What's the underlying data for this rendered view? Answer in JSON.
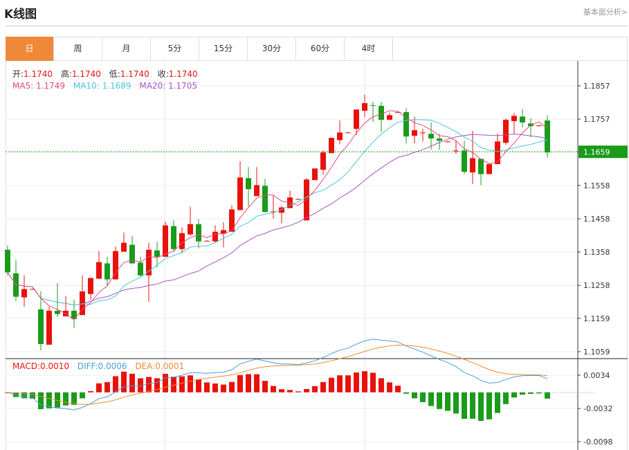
{
  "header": {
    "title": "K线图",
    "link": "基本面分析>"
  },
  "tabs": [
    {
      "label": "日",
      "active": true
    },
    {
      "label": "周"
    },
    {
      "label": "月"
    },
    {
      "label": "5分"
    },
    {
      "label": "15分"
    },
    {
      "label": "30分"
    },
    {
      "label": "60分"
    },
    {
      "label": "4时"
    }
  ],
  "ohlc_legend": {
    "open_label": "开:",
    "open": "1.1740",
    "high_label": "高:",
    "high": "1.1740",
    "low_label": "低:",
    "low": "1.1740",
    "close_label": "收:",
    "close": "1.1740"
  },
  "ma_legend": {
    "ma5": "MA5: 1.1749",
    "ma10": "MA10: 1.1689",
    "ma20": "MA20: 1.1705"
  },
  "macd_legend": {
    "macd": "MACD:0.0010",
    "diff": "DIFF:0.0006",
    "dea": "DEA:0.0001"
  },
  "current_price": "1.1659",
  "colors": {
    "up": "#e8120c",
    "down": "#1a9b1a",
    "ma5": "#e8487a",
    "ma10": "#4ec6d6",
    "ma20": "#a452c4",
    "diff": "#4a9be0",
    "dea": "#f08a30",
    "tab_active": "#f0883a"
  },
  "chart_data": {
    "type": "candlestick",
    "price_ticks": [
      "1.1857",
      "1.1757",
      "1.1659",
      "1.1558",
      "1.1458",
      "1.1358",
      "1.1258",
      "1.1159",
      "1.1059"
    ],
    "ylim": [
      1.1059,
      1.1857
    ],
    "macd_ticks": [
      "0.0034",
      "-0.0032",
      "-0.0098"
    ],
    "macd_ylim": [
      -0.0098,
      0.0034
    ],
    "candles": [
      [
        1.1365,
        1.1378,
        1.1288,
        1.1297
      ],
      [
        1.1294,
        1.1334,
        1.1211,
        1.1224
      ],
      [
        1.1222,
        1.1288,
        1.1194,
        1.1247
      ],
      [
        1.1247,
        1.1249,
        1.1245,
        1.1247
      ],
      [
        1.1186,
        1.124,
        1.1063,
        1.1082
      ],
      [
        1.108,
        1.1194,
        1.108,
        1.1182
      ],
      [
        1.1182,
        1.1265,
        1.1163,
        1.1172
      ],
      [
        1.1165,
        1.1226,
        1.1165,
        1.1182
      ],
      [
        1.1182,
        1.1215,
        1.113,
        1.1157
      ],
      [
        1.1169,
        1.1288,
        1.1169,
        1.124
      ],
      [
        1.1232,
        1.1282,
        1.1215,
        1.128
      ],
      [
        1.1278,
        1.1361,
        1.1278,
        1.1328
      ],
      [
        1.1324,
        1.1344,
        1.1257,
        1.1276
      ],
      [
        1.1276,
        1.1374,
        1.1276,
        1.1361
      ],
      [
        1.1359,
        1.1417,
        1.1359,
        1.1386
      ],
      [
        1.138,
        1.1407,
        1.1324,
        1.1324
      ],
      [
        1.1326,
        1.1344,
        1.1282,
        1.1288
      ],
      [
        1.1288,
        1.1386,
        1.1209,
        1.1365
      ],
      [
        1.1363,
        1.1388,
        1.1311,
        1.1344
      ],
      [
        1.1344,
        1.1449,
        1.1344,
        1.1438
      ],
      [
        1.1436,
        1.1455,
        1.1361,
        1.1367
      ],
      [
        1.1367,
        1.1432,
        1.1357,
        1.1415
      ],
      [
        1.1411,
        1.1494,
        1.1407,
        1.1442
      ],
      [
        1.1442,
        1.1457,
        1.1369,
        1.139
      ],
      [
        1.1392,
        1.1394,
        1.139,
        1.1392
      ],
      [
        1.139,
        1.1438,
        1.1386,
        1.1419
      ],
      [
        1.1413,
        1.1447,
        1.1372,
        1.1424
      ],
      [
        1.1419,
        1.1499,
        1.1419,
        1.1486
      ],
      [
        1.1484,
        1.163,
        1.1484,
        1.1582
      ],
      [
        1.158,
        1.1613,
        1.1494,
        1.1547
      ],
      [
        1.1526,
        1.1613,
        1.1526,
        1.1559
      ],
      [
        1.1557,
        1.1578,
        1.1478,
        1.1478
      ],
      [
        1.1478,
        1.1528,
        1.1459,
        1.148
      ],
      [
        1.1476,
        1.1497,
        1.1444,
        1.1492
      ],
      [
        1.149,
        1.1542,
        1.149,
        1.1522
      ],
      [
        1.1517,
        1.1519,
        1.1515,
        1.1517
      ],
      [
        1.1453,
        1.158,
        1.1453,
        1.1576
      ],
      [
        1.1574,
        1.1609,
        1.1574,
        1.1609
      ],
      [
        1.1605,
        1.1663,
        1.159,
        1.1657
      ],
      [
        1.1655,
        1.1701,
        1.1655,
        1.1701
      ],
      [
        1.1694,
        1.1753,
        1.1682,
        1.1717
      ],
      [
        1.1717,
        1.1719,
        1.1715,
        1.1717
      ],
      [
        1.1728,
        1.1786,
        1.1709,
        1.1786
      ],
      [
        1.1782,
        1.183,
        1.1763,
        1.1805
      ],
      [
        1.1799,
        1.1809,
        1.1749,
        1.1797
      ],
      [
        1.1797,
        1.1809,
        1.1719,
        1.1755
      ],
      [
        1.1755,
        1.1776,
        1.1755,
        1.1769
      ],
      [
        1.1778,
        1.178,
        1.1776,
        1.1778
      ],
      [
        1.1778,
        1.179,
        1.1684,
        1.1705
      ],
      [
        1.1707,
        1.1765,
        1.1684,
        1.1724
      ],
      [
        1.1717,
        1.1728,
        1.169,
        1.1717
      ],
      [
        1.1713,
        1.1747,
        1.1665,
        1.1699
      ],
      [
        1.1699,
        1.1713,
        1.1665,
        1.1692
      ],
      [
        1.169,
        1.1692,
        1.1688,
        1.169
      ],
      [
        1.1663,
        1.1694,
        1.1653,
        1.1663
      ],
      [
        1.1663,
        1.1692,
        1.1592,
        1.1599
      ],
      [
        1.1597,
        1.1722,
        1.1563,
        1.164
      ],
      [
        1.1638,
        1.1638,
        1.1559,
        1.1592
      ],
      [
        1.1592,
        1.1622,
        1.1592,
        1.1622
      ],
      [
        1.1622,
        1.1713,
        1.1622,
        1.169
      ],
      [
        1.1686,
        1.1759,
        1.168,
        1.1755
      ],
      [
        1.1751,
        1.1776,
        1.1713,
        1.1767
      ],
      [
        1.1765,
        1.1788,
        1.1732,
        1.1747
      ],
      [
        1.1744,
        1.1759,
        1.1703,
        1.1736
      ],
      [
        1.1738,
        1.174,
        1.1736,
        1.1738
      ],
      [
        1.1753,
        1.1769,
        1.1642,
        1.1657
      ]
    ]
  }
}
